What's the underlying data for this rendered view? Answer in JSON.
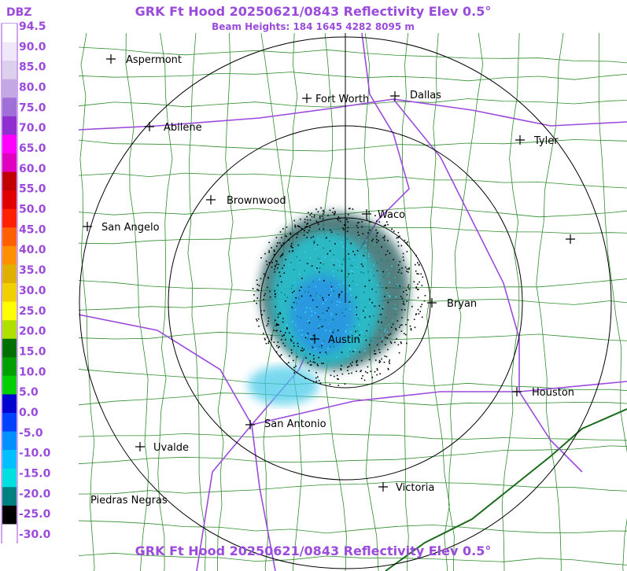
{
  "header": {
    "title": "GRK Ft Hood 20250621/0843 Reflectivity Elev 0.5°",
    "subtitle": "Beam Heights: 184 1645 4282 8095 m"
  },
  "legend": {
    "unit": "DBZ",
    "labels": [
      "94.5",
      "90.0",
      "85.0",
      "80.0",
      "75.0",
      "70.0",
      "65.0",
      "60.0",
      "55.0",
      "50.0",
      "45.0",
      "40.0",
      "35.0",
      "30.0",
      "25.0",
      "20.0",
      "15.0",
      "10.0",
      "5.0",
      "0.0",
      "-5.0",
      "-10.0",
      "-15.0",
      "-20.0",
      "-25.0",
      "-30.0"
    ]
  },
  "cities": [
    {
      "label": "Aspermont"
    },
    {
      "label": "Abilene"
    },
    {
      "label": "Fort Worth"
    },
    {
      "label": "Dallas"
    },
    {
      "label": "Tyler"
    },
    {
      "label": "Brownwood"
    },
    {
      "label": "Waco"
    },
    {
      "label": "San Angelo"
    },
    {
      "label": "Bryan"
    },
    {
      "label": "Austin"
    },
    {
      "label": "Houston"
    },
    {
      "label": "San Antonio"
    },
    {
      "label": "Uvalde"
    },
    {
      "label": "Victoria"
    },
    {
      "label": "Piedras Negras"
    }
  ],
  "footer": {
    "title": "GRK Ft Hood 20250621/0843 Reflectivity Elev 0.5°"
  }
}
